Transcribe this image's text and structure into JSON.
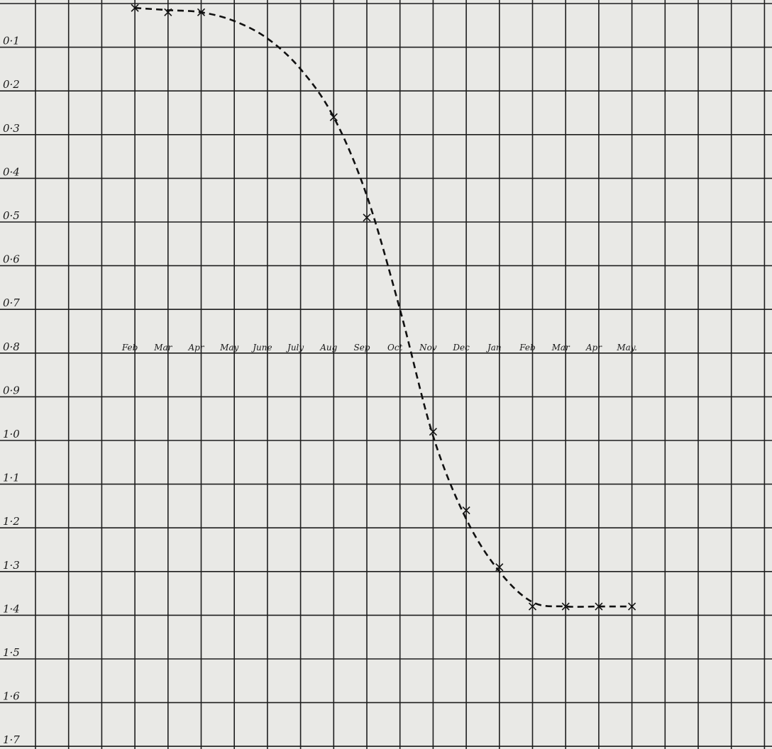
{
  "chart_data": {
    "type": "line",
    "title": "",
    "xlabel": "",
    "ylabel": "",
    "y_inverted": true,
    "ylim": [
      0.0,
      1.7
    ],
    "grid": true,
    "y_ticks": [
      "0·1",
      "0·2",
      "0·3",
      "0·4",
      "0·5",
      "0·6",
      "0·7",
      "0·8",
      "0·9",
      "1·0",
      "1·1",
      "1·2",
      "1·3",
      "1·4",
      "1·5",
      "1·6",
      "1·7"
    ],
    "x_ticks": [
      "Feb",
      "Mar",
      "Apr",
      "May",
      "June",
      "July",
      "Aug",
      "Sep",
      "Oct",
      "Nov",
      "Dec",
      "Jan",
      "Feb",
      "Mar",
      "Apr",
      "May."
    ],
    "series": [
      {
        "style": "dashed",
        "markers": [
          {
            "x": "Feb",
            "y": 0.01
          },
          {
            "x": "Mar",
            "y": 0.02
          },
          {
            "x": "Apr",
            "y": 0.02
          },
          {
            "x": "Aug",
            "y": 0.26
          },
          {
            "x": "Sep",
            "y": 0.49
          },
          {
            "x": "Nov",
            "y": 0.98
          },
          {
            "x": "Dec",
            "y": 1.16
          },
          {
            "x": "Jan",
            "y": 1.29
          },
          {
            "x": "Feb",
            "y": 1.38
          },
          {
            "x": "Mar",
            "y": 1.38
          },
          {
            "x": "Apr",
            "y": 1.38
          },
          {
            "x": "May.",
            "y": 1.38
          }
        ],
        "curve": [
          {
            "x": "Feb",
            "y": 0.01
          },
          {
            "x": "Mar",
            "y": 0.015
          },
          {
            "x": "Apr",
            "y": 0.02
          },
          {
            "x": "May",
            "y": 0.04
          },
          {
            "x": "June",
            "y": 0.08
          },
          {
            "x": "July",
            "y": 0.15
          },
          {
            "x": "Aug",
            "y": 0.26
          },
          {
            "x": "Sep",
            "y": 0.44
          },
          {
            "x": "Oct",
            "y": 0.7
          },
          {
            "x": "Nov",
            "y": 0.99
          },
          {
            "x": "Dec",
            "y": 1.18
          },
          {
            "x": "Jan",
            "y": 1.3
          },
          {
            "x": "Feb",
            "y": 1.37
          },
          {
            "x": "Mar",
            "y": 1.38
          },
          {
            "x": "Apr",
            "y": 1.38
          },
          {
            "x": "May.",
            "y": 1.38
          }
        ]
      }
    ]
  }
}
